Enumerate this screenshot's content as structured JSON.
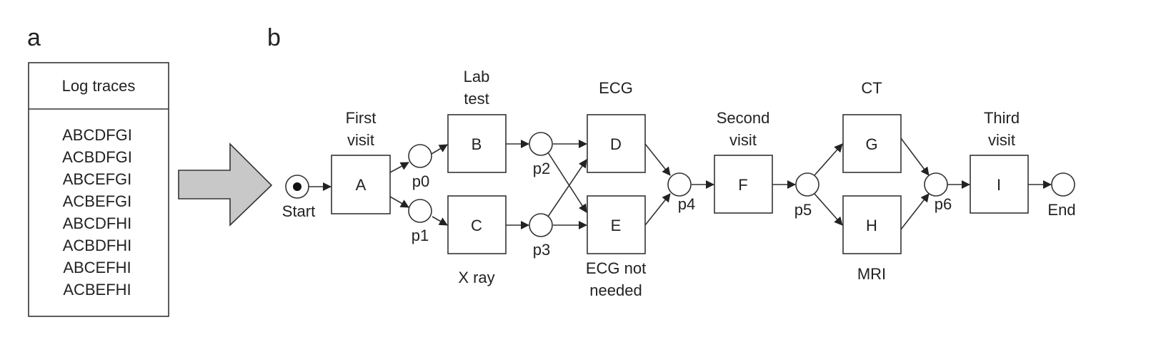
{
  "panels": {
    "a": "a",
    "b": "b"
  },
  "log": {
    "header": "Log traces",
    "traces": [
      "ABCDFGI",
      "ACBDFGI",
      "ABCEFGI",
      "ACBEFGI",
      "ABCDFHI",
      "ACBDFHI",
      "ABCEFHI",
      "ACBEFHI"
    ]
  },
  "transitions": {
    "A": {
      "label": "A",
      "caption": [
        "First",
        "visit"
      ]
    },
    "B": {
      "label": "B",
      "caption": [
        "Lab",
        "test"
      ]
    },
    "C": {
      "label": "C",
      "caption": [
        "X ray"
      ]
    },
    "D": {
      "label": "D",
      "caption": [
        "ECG"
      ]
    },
    "E": {
      "label": "E",
      "caption": [
        "ECG not",
        "needed"
      ]
    },
    "F": {
      "label": "F",
      "caption": [
        "Second",
        "visit"
      ]
    },
    "G": {
      "label": "G",
      "caption": [
        "CT"
      ]
    },
    "H": {
      "label": "H",
      "caption": [
        "MRI"
      ]
    },
    "I": {
      "label": "I",
      "caption": [
        "Third",
        "visit"
      ]
    }
  },
  "places": {
    "start": "Start",
    "p0": "p0",
    "p1": "p1",
    "p2": "p2",
    "p3": "p3",
    "p4": "p4",
    "p5": "p5",
    "p6": "p6",
    "end": "End"
  },
  "start_has_token": true,
  "colors": {
    "arrow_fill": "#c8c8c8",
    "stroke": "#333333"
  }
}
